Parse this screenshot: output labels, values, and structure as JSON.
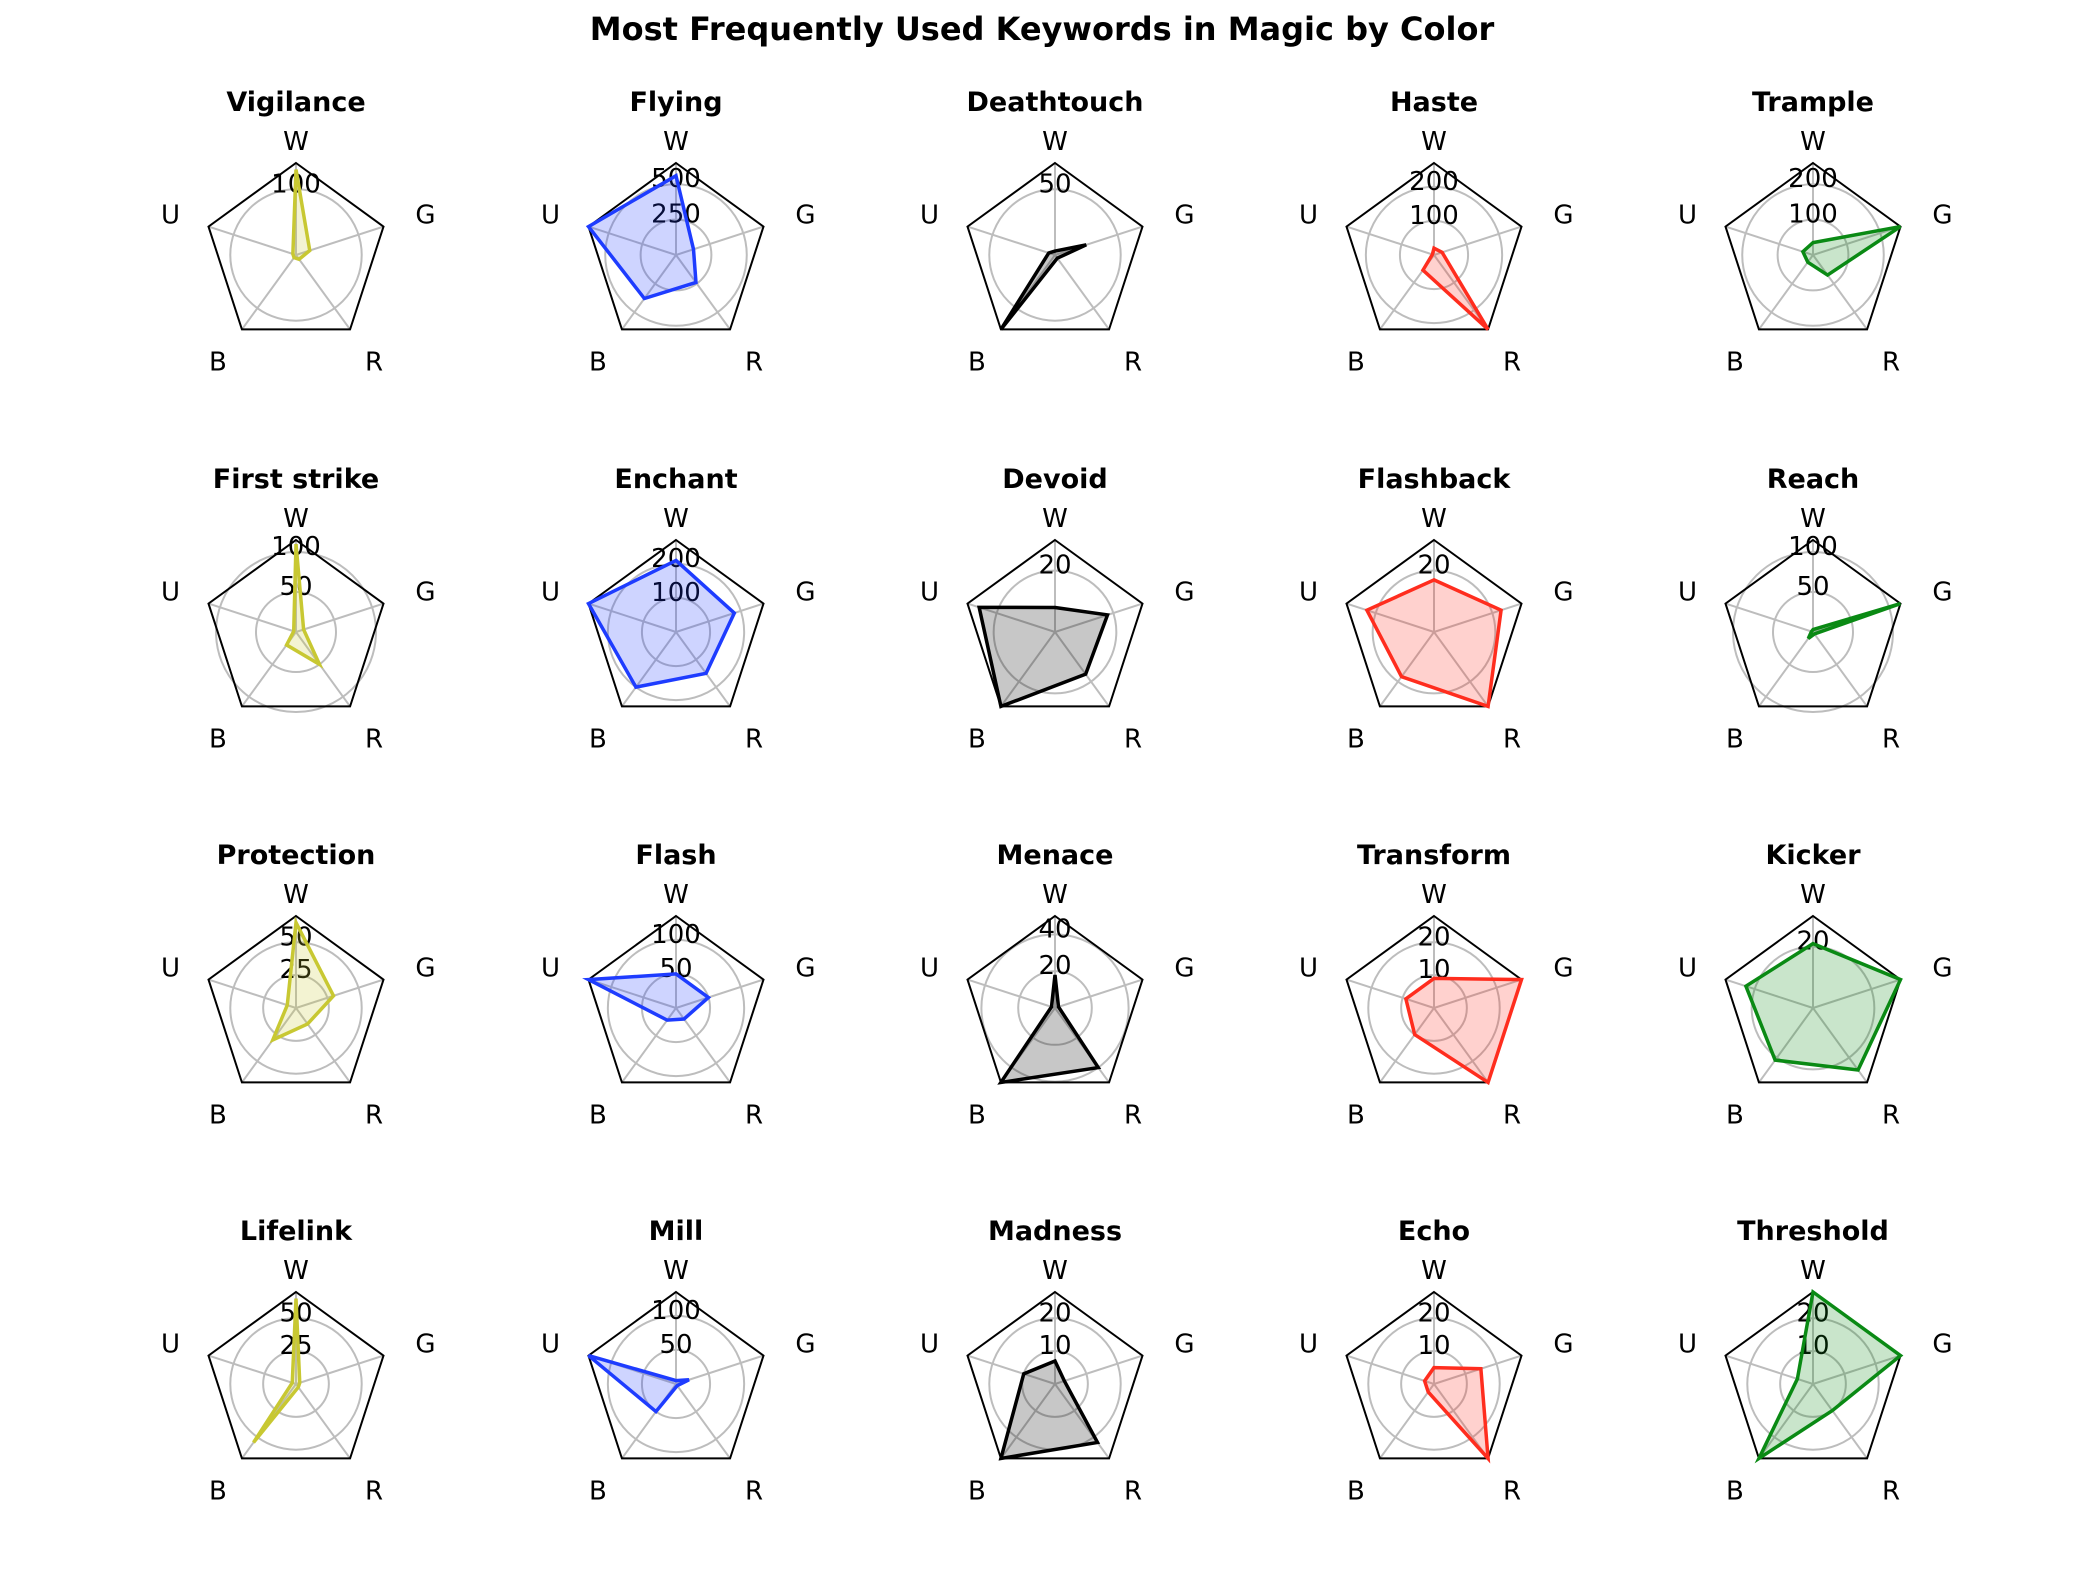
{
  "chart_data": {
    "type": "radar",
    "title": "Most Frequently Used Keywords in Magic by Color",
    "axes": [
      "W",
      "G",
      "R",
      "B",
      "U"
    ],
    "colors": {
      "W": "#c8c832",
      "U": "#1e3cff",
      "B": "#000000",
      "R": "#ff2d1e",
      "G": "#0a8a14"
    },
    "charts": [
      {
        "title": "Vigilance",
        "color_key": "W",
        "max": 140,
        "ticks": [
          100
        ],
        "values": [
          130,
          22,
          8,
          5,
          5
        ]
      },
      {
        "title": "Flying",
        "color_key": "U",
        "max": 650,
        "ticks": [
          250,
          500
        ],
        "values": [
          560,
          130,
          240,
          380,
          650
        ]
      },
      {
        "title": "Deathtouch",
        "color_key": "B",
        "max": 70,
        "ticks": [
          50
        ],
        "values": [
          3,
          25,
          3,
          70,
          5
        ]
      },
      {
        "title": "Haste",
        "color_key": "R",
        "max": 270,
        "ticks": [
          100,
          200
        ],
        "values": [
          20,
          25,
          270,
          55,
          5
        ]
      },
      {
        "title": "Trample",
        "color_key": "G",
        "max": 260,
        "ticks": [
          100,
          200
        ],
        "values": [
          35,
          260,
          70,
          25,
          30
        ]
      },
      {
        "title": "First strike",
        "color_key": "W",
        "max": 115,
        "ticks": [
          50,
          100
        ],
        "values": [
          110,
          10,
          50,
          20,
          3
        ]
      },
      {
        "title": "Enchant",
        "color_key": "U",
        "max": 270,
        "ticks": [
          100,
          200
        ],
        "values": [
          210,
          180,
          150,
          200,
          270
        ]
      },
      {
        "title": "Devoid",
        "color_key": "B",
        "max": 30,
        "ticks": [
          20
        ],
        "values": [
          8,
          18,
          17,
          30,
          26
        ]
      },
      {
        "title": "Flashback",
        "color_key": "R",
        "max": 30,
        "ticks": [
          20
        ],
        "values": [
          17,
          23,
          30,
          18,
          23
        ]
      },
      {
        "title": "Reach",
        "color_key": "G",
        "max": 115,
        "ticks": [
          50,
          100
        ],
        "values": [
          3,
          115,
          3,
          10,
          2
        ]
      },
      {
        "title": "Protection",
        "color_key": "W",
        "max": 70,
        "ticks": [
          25,
          50
        ],
        "values": [
          65,
          30,
          15,
          30,
          7
        ]
      },
      {
        "title": "Flash",
        "color_key": "U",
        "max": 135,
        "ticks": [
          50,
          100
        ],
        "values": [
          50,
          50,
          20,
          22,
          135
        ]
      },
      {
        "title": "Menace",
        "color_key": "B",
        "max": 50,
        "ticks": [
          20,
          40
        ],
        "values": [
          18,
          2,
          40,
          50,
          2
        ]
      },
      {
        "title": "Transform",
        "color_key": "R",
        "max": 28,
        "ticks": [
          10,
          20
        ],
        "values": [
          9,
          28,
          28,
          10,
          9
        ]
      },
      {
        "title": "Kicker",
        "color_key": "G",
        "max": 30,
        "ticks": [
          20
        ],
        "values": [
          21,
          30,
          25,
          21,
          23
        ]
      },
      {
        "title": "Lifelink",
        "color_key": "W",
        "max": 70,
        "ticks": [
          25,
          50
        ],
        "values": [
          65,
          3,
          3,
          55,
          3
        ]
      },
      {
        "title": "Mill",
        "color_key": "U",
        "max": 135,
        "ticks": [
          50,
          100
        ],
        "values": [
          5,
          20,
          3,
          50,
          135
        ]
      },
      {
        "title": "Madness",
        "color_key": "B",
        "max": 28,
        "ticks": [
          10,
          20
        ],
        "values": [
          7,
          3,
          22,
          28,
          10
        ]
      },
      {
        "title": "Echo",
        "color_key": "R",
        "max": 28,
        "ticks": [
          10,
          20
        ],
        "values": [
          5,
          15,
          28,
          3,
          3
        ]
      },
      {
        "title": "Threshold",
        "color_key": "G",
        "max": 28,
        "ticks": [
          10,
          20
        ],
        "values": [
          28,
          28,
          10,
          28,
          5
        ]
      }
    ]
  }
}
